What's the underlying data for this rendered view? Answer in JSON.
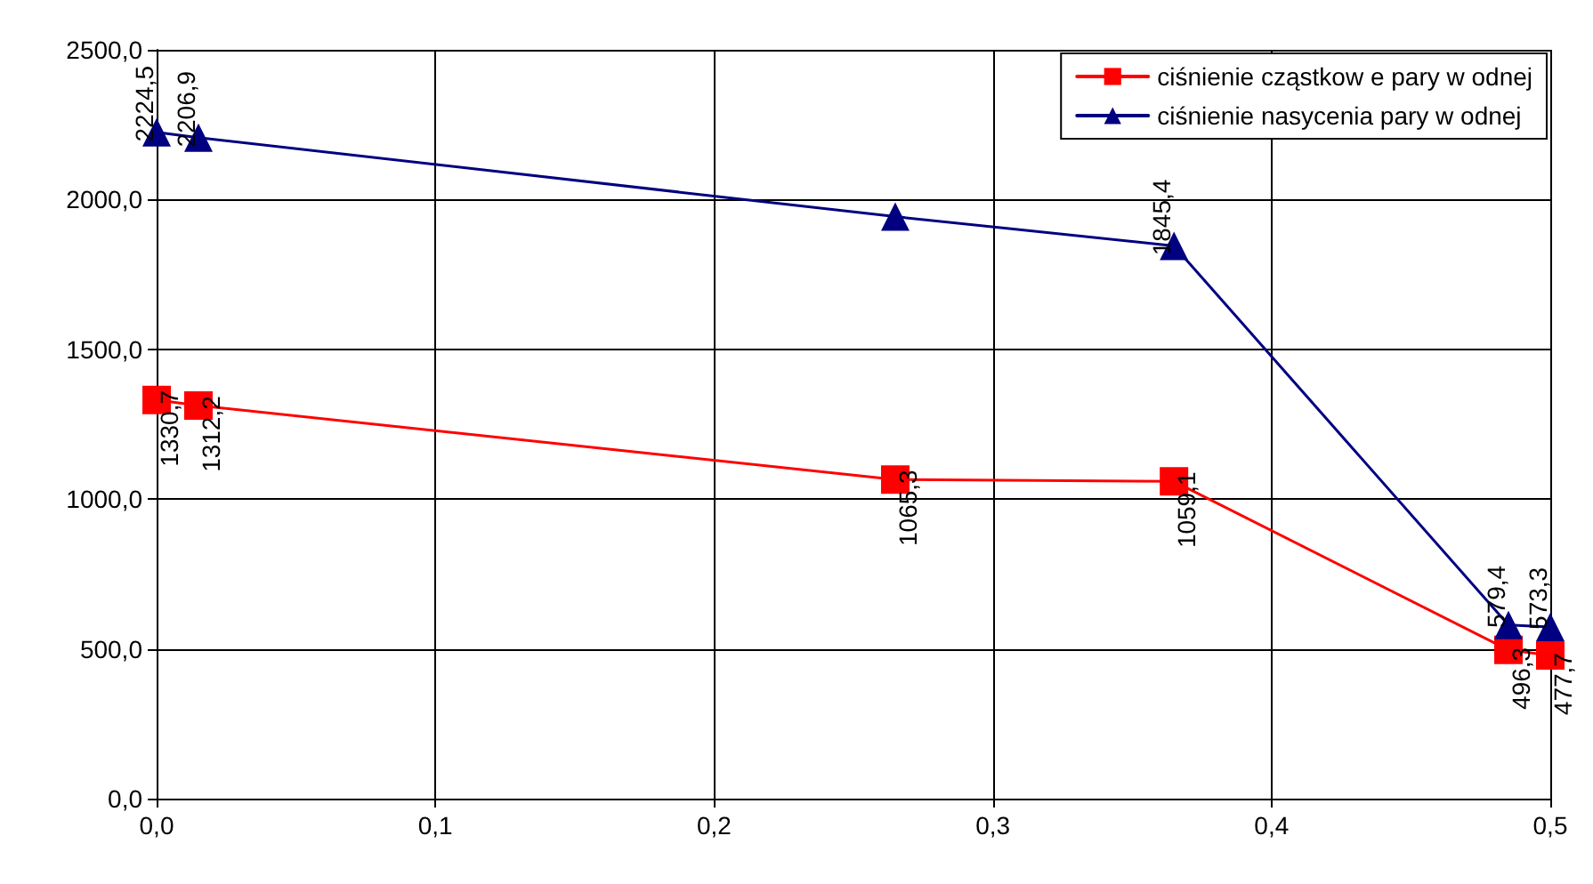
{
  "chart_data": {
    "type": "line",
    "x": [
      0,
      0.015,
      0.265,
      0.365,
      0.485,
      0.5
    ],
    "series": [
      {
        "name": "ciśnienie cząstkow e pary w odnej",
        "color": "#ff0000",
        "marker": "square",
        "values": [
          1330.7,
          1312.2,
          1065.3,
          1059.1,
          496.3,
          477.7
        ],
        "value_labels": [
          "1330,7",
          "1312,2",
          "1065,3",
          "1059,1",
          "496,3",
          "477,7"
        ]
      },
      {
        "name": "ciśnienie nasycenia pary w odnej",
        "color": "#000080",
        "marker": "triangle",
        "values": [
          2224.5,
          2206.9,
          1943,
          1845.4,
          579.4,
          573.3
        ],
        "value_labels": [
          "2224,5",
          "2206,9",
          null,
          "1845,4",
          "579,4",
          "573,3"
        ]
      }
    ],
    "xlim": [
      0,
      0.5
    ],
    "xticks": [
      {
        "value": 0,
        "label": "0,0"
      },
      {
        "value": 0.1,
        "label": "0,1"
      },
      {
        "value": 0.2,
        "label": "0,2"
      },
      {
        "value": 0.3,
        "label": "0,3"
      },
      {
        "value": 0.4,
        "label": "0,4"
      },
      {
        "value": 0.5,
        "label": "0,5"
      }
    ],
    "ylim": [
      0,
      2500
    ],
    "yticks": [
      {
        "value": 0,
        "label": "0,0"
      },
      {
        "value": 500,
        "label": "500,0"
      },
      {
        "value": 1000,
        "label": "1000,0"
      },
      {
        "value": 1500,
        "label": "1500,0"
      },
      {
        "value": 2000,
        "label": "2000,0"
      },
      {
        "value": 2500,
        "label": "2500,0"
      }
    ],
    "grid": true,
    "legend": "top right",
    "line_style": "solid"
  }
}
